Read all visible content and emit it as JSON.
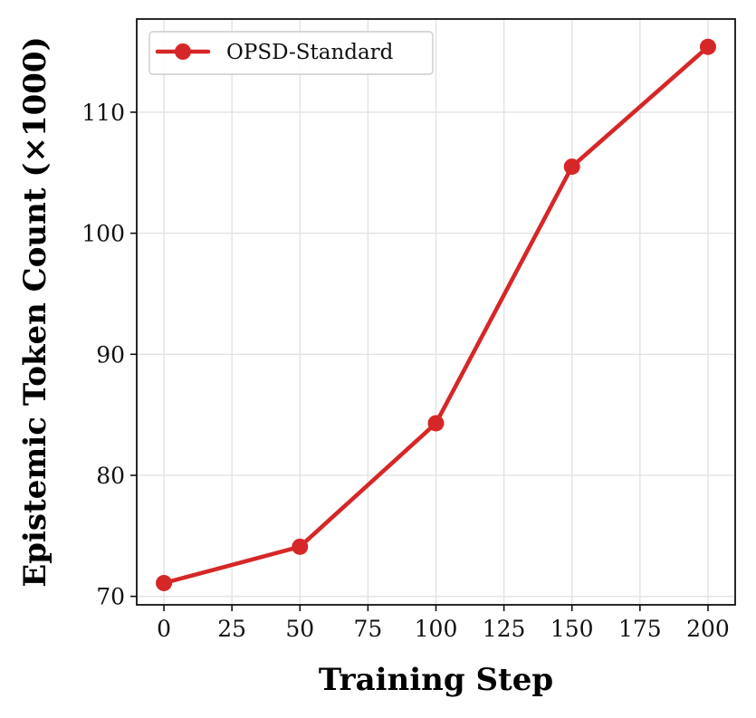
{
  "chart_data": {
    "type": "line",
    "xlabel": "Training Step",
    "ylabel": "Epistemic Token Count (×1000)",
    "x": [
      0,
      50,
      100,
      150,
      200
    ],
    "series": [
      {
        "name": "OPSD-Standard",
        "values": [
          71.1,
          74.1,
          84.3,
          105.5,
          115.4
        ],
        "color": "#d62728"
      }
    ],
    "xlim": [
      -10,
      210
    ],
    "ylim": [
      69.3,
      117.7
    ],
    "xticks": [
      0,
      25,
      50,
      75,
      100,
      125,
      150,
      175,
      200
    ],
    "xtick_labels": [
      "0",
      "25",
      "50",
      "75",
      "100",
      "125",
      "150",
      "175",
      "200"
    ],
    "yticks": [
      70,
      80,
      90,
      100,
      110
    ],
    "ytick_labels": [
      "70",
      "80",
      "90",
      "100",
      "110"
    ],
    "grid": true,
    "legend_position": "top-left",
    "marker": "circle"
  }
}
